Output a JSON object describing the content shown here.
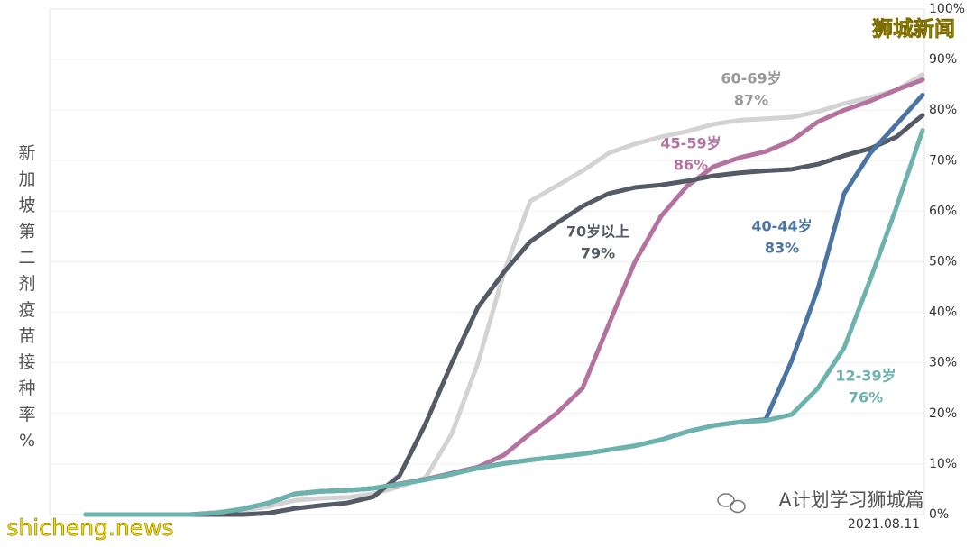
{
  "chart_data": {
    "type": "line",
    "y_label": "新加坡第二剂疫苗接种率%",
    "categories": [
      null,
      null,
      null,
      null,
      null,
      null,
      null,
      null,
      null,
      null,
      null,
      null,
      null,
      null,
      null,
      null,
      null,
      null,
      null,
      null,
      null,
      null,
      null,
      null,
      null,
      null,
      null,
      null,
      null,
      null,
      null,
      "2021.08.11",
      null
    ],
    "ylim": [
      0,
      100
    ],
    "yticks": [
      {
        "value": 0,
        "label": "0%"
      },
      {
        "value": 10,
        "label": "10%"
      },
      {
        "value": 20,
        "label": "20%"
      },
      {
        "value": 30,
        "label": "30%"
      },
      {
        "value": 40,
        "label": "40%"
      },
      {
        "value": 50,
        "label": "50%"
      },
      {
        "value": 60,
        "label": "60%"
      },
      {
        "value": 70,
        "label": "70%"
      },
      {
        "value": 80,
        "label": "80%"
      },
      {
        "value": 90,
        "label": "90%"
      },
      {
        "value": 100,
        "label": "100%"
      }
    ],
    "grid": true,
    "series": [
      {
        "name": "60-69岁",
        "color": "#d3d3d3",
        "label_color": "#999999",
        "values": [
          0,
          0,
          0,
          0,
          0,
          0.5,
          0.8,
          1.6,
          2.8,
          3.2,
          3.4,
          4.1,
          5.5,
          7.3,
          16,
          30,
          48,
          62,
          65,
          68,
          71.5,
          73.3,
          74.7,
          75.8,
          77.2,
          78,
          78.3,
          78.6,
          79.7,
          81.3,
          82.5,
          84,
          87
        ],
        "value_labels": [
          null,
          null,
          null,
          null,
          null,
          null,
          null,
          null,
          null,
          null,
          null,
          null,
          null,
          null,
          null,
          null,
          null,
          null,
          null,
          null,
          null,
          null,
          null,
          null,
          null,
          null,
          null,
          null,
          null,
          null,
          null,
          null,
          "87%"
        ]
      },
      {
        "name": "45-59岁",
        "color": "#b4739f",
        "label_color": "#b4739f",
        "values": [
          0,
          0,
          0,
          0,
          0,
          0.3,
          1.1,
          2.3,
          4.1,
          4.6,
          4.8,
          5.2,
          6.1,
          7,
          8.2,
          9.4,
          11.8,
          16,
          20,
          25,
          37.6,
          50,
          59,
          65,
          68.8,
          70.6,
          71.8,
          74,
          77.7,
          80,
          81.8,
          84,
          86
        ],
        "value_labels": [
          null,
          null,
          null,
          null,
          null,
          null,
          null,
          null,
          null,
          null,
          null,
          null,
          null,
          null,
          null,
          null,
          null,
          null,
          null,
          null,
          null,
          null,
          null,
          null,
          null,
          null,
          null,
          null,
          null,
          null,
          null,
          null,
          "86%"
        ]
      },
      {
        "name": "70岁以上",
        "color": "#545b66",
        "label_color": "#545b66",
        "values": [
          0,
          0,
          0,
          0,
          0,
          0,
          0,
          0.3,
          1.2,
          1.8,
          2.3,
          3.5,
          7.7,
          18,
          30,
          41,
          48,
          54,
          57.6,
          61,
          63.5,
          64.7,
          65.2,
          66,
          67,
          67.6,
          68,
          68.3,
          69.3,
          71,
          72.4,
          74.7,
          79
        ],
        "value_labels": [
          null,
          null,
          null,
          null,
          null,
          null,
          null,
          null,
          null,
          null,
          null,
          null,
          null,
          null,
          null,
          null,
          null,
          null,
          null,
          null,
          null,
          null,
          null,
          null,
          null,
          null,
          null,
          null,
          null,
          null,
          null,
          null,
          "79%"
        ]
      },
      {
        "name": "40-44岁",
        "color": "#4a74a3",
        "label_color": "#4a74a3",
        "values": [
          0,
          0,
          0,
          0,
          0,
          0.3,
          1.1,
          2.3,
          4.1,
          4.6,
          4.8,
          5.2,
          6,
          6.9,
          8,
          9.2,
          10.1,
          10.8,
          11.4,
          12,
          12.8,
          13.6,
          14.8,
          16.4,
          17.6,
          18.3,
          18.8,
          30.5,
          44.7,
          63.5,
          71.5,
          77.2,
          83
        ],
        "value_labels": [
          null,
          null,
          null,
          null,
          null,
          null,
          null,
          null,
          null,
          null,
          null,
          null,
          null,
          null,
          null,
          null,
          null,
          null,
          null,
          null,
          null,
          null,
          null,
          null,
          null,
          null,
          null,
          null,
          null,
          null,
          null,
          null,
          "83%"
        ]
      },
      {
        "name": "12-39岁",
        "color": "#6cb3ad",
        "label_color": "#6cb3ad",
        "values": [
          0,
          0,
          0,
          0,
          0,
          0.3,
          1.1,
          2.3,
          4.1,
          4.6,
          4.8,
          5.2,
          6,
          6.9,
          8,
          9.2,
          10.1,
          10.8,
          11.4,
          12,
          12.8,
          13.6,
          14.8,
          16.4,
          17.6,
          18.3,
          18.6,
          19.8,
          25,
          33,
          46.5,
          60.8,
          76
        ],
        "value_labels": [
          null,
          null,
          null,
          null,
          null,
          null,
          null,
          null,
          null,
          null,
          null,
          null,
          null,
          null,
          null,
          null,
          null,
          null,
          null,
          null,
          null,
          null,
          null,
          null,
          null,
          null,
          null,
          null,
          null,
          null,
          null,
          null,
          "76%"
        ]
      }
    ]
  },
  "watermark_top": "狮城新闻",
  "watermark_bottom": "shicheng.news",
  "wechat_account": "A计划学习狮城篇"
}
